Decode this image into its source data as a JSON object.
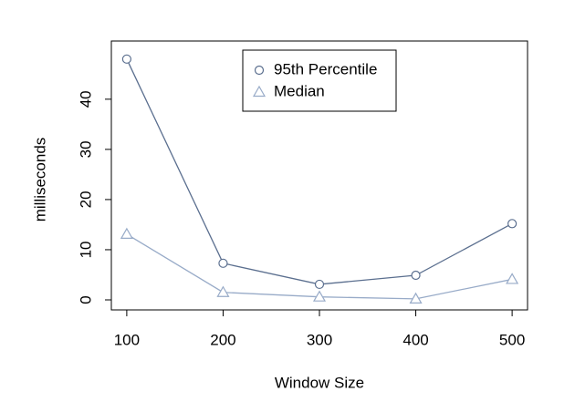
{
  "chart_data": {
    "type": "line",
    "x_label": "Window Size",
    "y_label": "milliseconds",
    "x": [
      100,
      200,
      300,
      400,
      500
    ],
    "series": [
      {
        "name": "95th Percentile",
        "color": "#5b6f8f",
        "marker": "circle",
        "values": [
          48,
          7.3,
          3.1,
          4.9,
          15.2
        ]
      },
      {
        "name": "Median",
        "color": "#98abc8",
        "marker": "triangle",
        "values": [
          13.1,
          1.5,
          0.6,
          0.2,
          4.1
        ]
      }
    ],
    "xlim": [
      84,
      516
    ],
    "ylim": [
      -2,
      51.6
    ],
    "xticks": [
      100,
      200,
      300,
      400,
      500
    ],
    "yticks": [
      0,
      10,
      20,
      30,
      40
    ],
    "legend": "top"
  }
}
